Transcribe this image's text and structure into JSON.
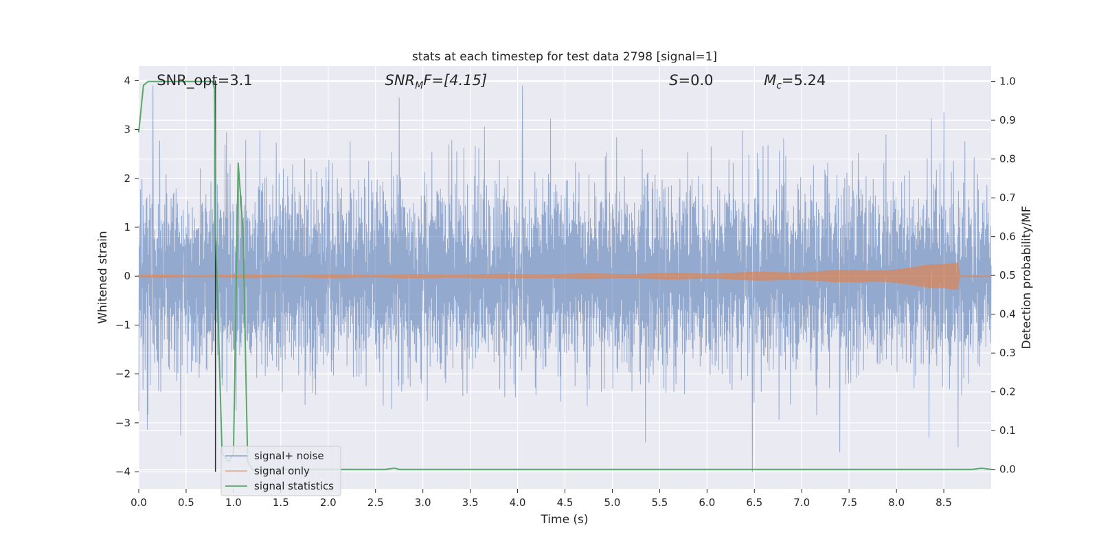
{
  "chart_data": {
    "type": "line",
    "title": "stats at each timestep for test data 2798 [signal=1]",
    "xlabel": "Time (s)",
    "ylabel_left": "Whitened strain",
    "ylabel_right": "Detection probability/MF",
    "xlim": [
      0.0,
      9.0
    ],
    "ylim_left": [
      -4.35,
      4.3
    ],
    "ylim_right": [
      -0.05,
      1.04
    ],
    "x_ticks": [
      "0.0",
      "0.5",
      "1.0",
      "1.5",
      "2.0",
      "2.5",
      "3.0",
      "3.5",
      "4.0",
      "4.5",
      "5.0",
      "5.5",
      "6.0",
      "6.5",
      "7.0",
      "7.5",
      "8.0",
      "8.5"
    ],
    "y_ticks_left": [
      "4",
      "3",
      "2",
      "1",
      "0",
      "−1",
      "−2",
      "−3",
      "−4"
    ],
    "y_tick_values_left": [
      4,
      3,
      2,
      1,
      0,
      -1,
      -2,
      -3,
      -4
    ],
    "y_ticks_right": [
      "1.0",
      "0.9",
      "0.8",
      "0.7",
      "0.6",
      "0.5",
      "0.4",
      "0.3",
      "0.2",
      "0.1",
      "0.0"
    ],
    "y_tick_values_right": [
      1.0,
      0.9,
      0.8,
      0.7,
      0.6,
      0.5,
      0.4,
      0.3,
      0.2,
      0.1,
      0.0
    ],
    "grid": true,
    "legend_position": "lower-left",
    "series": [
      {
        "name": "signal+ noise",
        "axis": "left",
        "color": "#4c72b0",
        "noise_envelope": {
          "typical_abs": 1.6,
          "max": 3.9,
          "min": -4.0
        },
        "spikes": [
          [
            0.15,
            3.9
          ],
          [
            0.8,
            2.8
          ],
          [
            2.75,
            3.65
          ],
          [
            4.05,
            3.9
          ],
          [
            8.5,
            3.35
          ],
          [
            6.48,
            -4.0
          ],
          [
            7.4,
            -3.6
          ],
          [
            8.65,
            -3.5
          ],
          [
            5.35,
            -3.4
          ]
        ]
      },
      {
        "name": "signal only",
        "axis": "left",
        "color": "#dd8452",
        "amplitude_profile": [
          [
            0.0,
            0.03
          ],
          [
            3.0,
            0.04
          ],
          [
            6.0,
            0.07
          ],
          [
            7.5,
            0.13
          ],
          [
            8.2,
            0.2
          ],
          [
            8.5,
            0.28
          ],
          [
            8.65,
            0.38
          ],
          [
            8.67,
            0.03
          ],
          [
            9.0,
            0.02
          ]
        ]
      },
      {
        "name": "signal statistics",
        "axis": "right",
        "color": "#55a868",
        "x": [
          0.0,
          0.05,
          0.1,
          0.5,
          0.78,
          0.8,
          0.81,
          0.88,
          0.95,
          1.0,
          1.05,
          1.1,
          1.15,
          1.2,
          2.6,
          2.7,
          2.75,
          8.8,
          8.9,
          9.0
        ],
        "y": [
          0.87,
          0.99,
          1.0,
          1.0,
          1.0,
          0.98,
          0.62,
          0.04,
          0.02,
          0.04,
          0.79,
          0.62,
          0.02,
          0.0,
          0.0,
          0.003,
          0.0,
          0.0,
          0.003,
          0.0
        ]
      }
    ],
    "vline": {
      "x": 0.81,
      "color": "#303030"
    },
    "annotations": [
      {
        "text": "SNR_opt=3.1",
        "x": 0.19
      },
      {
        "text": "SNR_MF=[4.15]",
        "x": 2.6
      },
      {
        "text": "S=0.0",
        "x": 5.6
      },
      {
        "text": "M_c=5.24",
        "x": 6.6
      }
    ],
    "background": "#eaeaf2"
  }
}
